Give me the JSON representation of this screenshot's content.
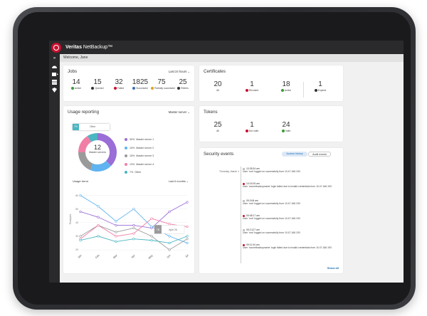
{
  "app": {
    "brand_bold": "Veritas",
    "brand_rest": " NetBackup™",
    "welcome": "Welcome, Jane"
  },
  "rail": [
    "chevron-right",
    "dashboard",
    "jobs",
    "storage",
    "security"
  ],
  "jobs": {
    "title": "Jobs",
    "range": "Last 24 hours ⌄",
    "stats": [
      {
        "n": "14",
        "label": "Active",
        "color": "#3a9a3a",
        "icon": "running-icon"
      },
      {
        "n": "15",
        "label": "Queued",
        "color": "#333333",
        "icon": "clock-icon"
      },
      {
        "n": "32",
        "label": "Failed",
        "color": "#c8102e",
        "icon": "error-icon"
      },
      {
        "n": "1825",
        "label": "Successful",
        "color": "#3d6fb4",
        "icon": "trophy-icon"
      },
      {
        "n": "75",
        "label": "Partially successful",
        "color": "#e0a020",
        "icon": "warning-icon"
      },
      {
        "n": "25",
        "label": "Retries",
        "color": "#333333",
        "icon": "retry-icon"
      }
    ]
  },
  "certificates": {
    "title": "Certificates",
    "stats": [
      {
        "n": "20",
        "label": "All",
        "color": "",
        "icon": ""
      },
      {
        "n": "1",
        "label": "Revoked",
        "color": "#c8102e",
        "icon": "revoked-icon"
      },
      {
        "n": "18",
        "label": "Active",
        "color": "#3a9a3a",
        "icon": "check-icon"
      },
      {
        "n": "1",
        "label": "Expired",
        "color": "#333333",
        "icon": "calendar-icon"
      }
    ]
  },
  "tokens": {
    "title": "Tokens",
    "stats": [
      {
        "n": "25",
        "label": "All",
        "color": "",
        "icon": ""
      },
      {
        "n": "1",
        "label": "Not valid",
        "color": "#c8102e",
        "icon": "invalid-icon"
      },
      {
        "n": "24",
        "label": "Valid",
        "color": "#3a9a3a",
        "icon": "check-icon"
      }
    ]
  },
  "usage": {
    "title": "Usage reporting",
    "server_select": "Master server ⌄",
    "donut_total": "12",
    "donut_label": "Master servers",
    "tooltip_pct": "7%",
    "tooltip_label": "Other",
    "legend": [
      {
        "pct": "30%",
        "name": "Master server 1",
        "color": "#9b6dd6"
      },
      {
        "pct": "15%",
        "name": "Master server 2",
        "color": "#5fb3f0"
      },
      {
        "pct": "15%",
        "name": "Master server 3",
        "color": "#9a9a9a"
      },
      {
        "pct": "13%",
        "name": "Master server 4",
        "color": "#f07fa6"
      },
      {
        "pct": "7%",
        "name": "Other",
        "color": "#4bb5c1"
      }
    ],
    "slices": [
      30,
      15,
      15,
      13,
      7
    ],
    "trend_title": "Usage trend",
    "trend_range": "Last 6 months ⌄",
    "y_label": "Terabytes",
    "hover_value": "TB",
    "hover_label": "April 26"
  },
  "chart_data": {
    "type": "line",
    "categories": [
      "Jan",
      "Feb",
      "Mar",
      "Apr",
      "May",
      "Jun",
      "Jul"
    ],
    "ylim": [
      20,
      65
    ],
    "yticks": [
      20,
      30,
      40,
      50,
      60
    ],
    "series": [
      {
        "name": "Master server 1",
        "color": "#9b6dd6",
        "values": [
          48,
          44,
          38,
          38,
          36,
          48,
          55
        ]
      },
      {
        "name": "Master server 2",
        "color": "#5fb3f0",
        "values": [
          60,
          52,
          41,
          50,
          37,
          30,
          25
        ]
      },
      {
        "name": "Master server 3",
        "color": "#9a9a9a",
        "values": [
          30,
          38,
          33,
          36,
          30,
          20,
          28
        ]
      },
      {
        "name": "Master server 4",
        "color": "#f07fa6",
        "values": [
          28,
          38,
          30,
          32,
          43,
          39,
          37
        ]
      },
      {
        "name": "Other",
        "color": "#4bb5c1",
        "values": [
          27,
          30,
          26,
          28,
          27,
          25,
          30
        ]
      }
    ]
  },
  "security": {
    "title": "Security events",
    "tab_access": "Access history",
    "tab_audit": "Audit events",
    "date": "Thursday, March 1",
    "show_all": "Show all",
    "events": [
      {
        "time": "10:28:34 am",
        "text": "User 'root' logged on successfully from 10.47.166.193",
        "alert": false
      },
      {
        "time": "10:15:26 am",
        "text": "User 'nocnetbackupname' login failed due to invalid credentials from 10.47.166.193",
        "alert": true
      },
      {
        "time": "09:3:06 am",
        "text": "User 'root' logged on successfully from 10.47.166.193",
        "alert": false
      },
      {
        "time": "09:48:17 am",
        "text": "User 'root' logged on successfully from 10.47.166.193",
        "alert": true
      },
      {
        "time": "09:2:127 am",
        "text": "User 'root' logged on successfully from 10.47.166.193",
        "alert": false
      },
      {
        "time": "09:11:34 am",
        "text": "User 'nocnetbackupname' login failed due to invalid credentials from 10.47.166.193",
        "alert": true
      }
    ]
  }
}
